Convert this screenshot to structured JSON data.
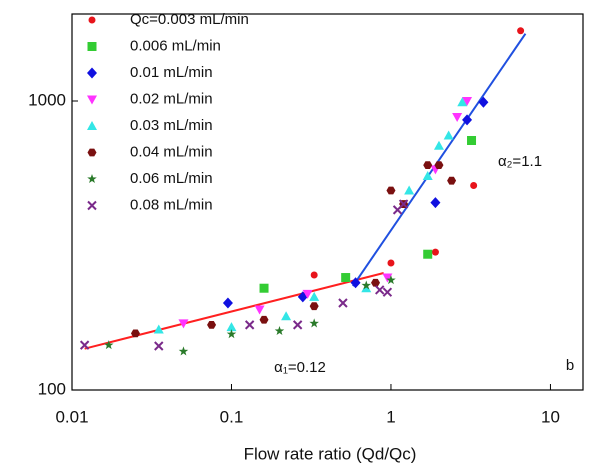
{
  "chart_data": {
    "type": "scatter",
    "x_label": "Flow rate ratio (Qd/Qc)",
    "log_x": true,
    "log_y": true,
    "xlim": [
      0.01,
      16
    ],
    "ylim": [
      100,
      2000
    ],
    "xticks": [
      0.01,
      0.1,
      1,
      10
    ],
    "yticks": [
      100,
      1000
    ],
    "series": [
      {
        "name": "Qc=0.003 mL/min",
        "color": "#e8141b",
        "marker": "dot",
        "x": [
          0.33,
          1.0,
          1.9,
          3.3,
          6.5
        ],
        "values": [
          250,
          275,
          300,
          510,
          1750
        ]
      },
      {
        "name": "0.006 mL/min",
        "color": "#33cc33",
        "marker": "square",
        "x": [
          0.16,
          0.52,
          1.7,
          3.2
        ],
        "values": [
          225,
          245,
          295,
          730
        ]
      },
      {
        "name": "0.01 mL/min",
        "color": "#1010e0",
        "marker": "diamond",
        "x": [
          0.095,
          0.28,
          0.6,
          1.9,
          3.0,
          3.8
        ],
        "values": [
          200,
          210,
          235,
          445,
          860,
          990
        ]
      },
      {
        "name": "0.02 mL/min",
        "color": "#ff33ff",
        "marker": "tri-down",
        "x": [
          0.05,
          0.15,
          0.3,
          0.95,
          1.9,
          2.6,
          3.0
        ],
        "values": [
          170,
          190,
          215,
          245,
          580,
          880,
          1000
        ]
      },
      {
        "name": "0.03 mL/min",
        "color": "#33e6e6",
        "marker": "tri-up",
        "x": [
          0.035,
          0.1,
          0.22,
          0.33,
          0.7,
          1.3,
          1.7,
          2.0,
          2.3,
          2.8
        ],
        "values": [
          162,
          165,
          180,
          210,
          225,
          490,
          550,
          700,
          760,
          990
        ]
      },
      {
        "name": "0.04 mL/min",
        "color": "#7a1010",
        "marker": "hexagon",
        "x": [
          0.025,
          0.075,
          0.16,
          0.33,
          0.8,
          1.0,
          1.2,
          1.7,
          2.0,
          2.4
        ],
        "values": [
          157,
          168,
          175,
          195,
          235,
          490,
          440,
          600,
          600,
          530
        ]
      },
      {
        "name": "0.06 mL/min",
        "color": "#2a7a2a",
        "marker": "star",
        "x": [
          0.017,
          0.05,
          0.1,
          0.2,
          0.33,
          0.7,
          1.0
        ],
        "values": [
          143,
          136,
          156,
          160,
          170,
          230,
          240
        ]
      },
      {
        "name": "0.08 mL/min",
        "color": "#7a2a8a",
        "marker": "x",
        "x": [
          0.012,
          0.035,
          0.13,
          0.26,
          0.5,
          0.85,
          0.95,
          1.1,
          1.2
        ],
        "values": [
          143,
          142,
          168,
          168,
          200,
          222,
          218,
          420,
          440
        ]
      }
    ],
    "fit_lines": [
      {
        "color": "#ff2020",
        "x": [
          0.012,
          0.9
        ],
        "values": [
          139,
          254
        ]
      },
      {
        "color": "#2050e0",
        "x": [
          0.577,
          6.97
        ],
        "values": [
          229,
          1710
        ]
      }
    ],
    "annotations": [
      "α₁=0.12",
      "α₂=1.1",
      "b"
    ]
  }
}
